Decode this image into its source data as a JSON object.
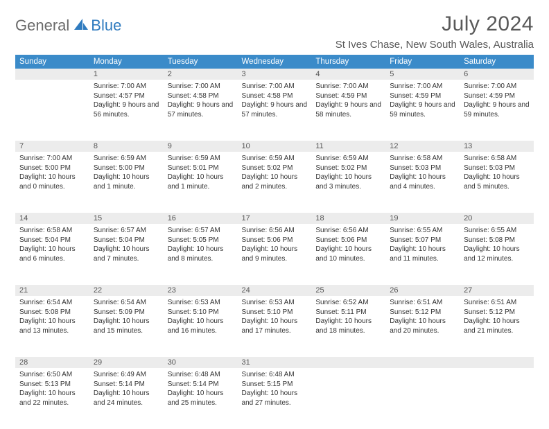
{
  "brand": {
    "part1": "General",
    "part2": "Blue"
  },
  "title": "July 2024",
  "location": "St Ives Chase, New South Wales, Australia",
  "colors": {
    "header_bg": "#3b8bc9",
    "header_text": "#ffffff",
    "daynum_bg": "#ececec",
    "row_border": "#2f6fa8",
    "title_color": "#595959",
    "body_text": "#333333",
    "logo_gray": "#6a6a6a",
    "logo_blue": "#2f7bbf"
  },
  "typography": {
    "title_fontsize": 30,
    "location_fontsize": 15,
    "header_fontsize": 11.5,
    "daynum_fontsize": 11,
    "body_fontsize": 10
  },
  "weekdays": [
    "Sunday",
    "Monday",
    "Tuesday",
    "Wednesday",
    "Thursday",
    "Friday",
    "Saturday"
  ],
  "weeks": [
    [
      {
        "n": "",
        "sr": "",
        "ss": "",
        "dl": ""
      },
      {
        "n": "1",
        "sr": "7:00 AM",
        "ss": "4:57 PM",
        "dl": "9 hours and 56 minutes."
      },
      {
        "n": "2",
        "sr": "7:00 AM",
        "ss": "4:58 PM",
        "dl": "9 hours and 57 minutes."
      },
      {
        "n": "3",
        "sr": "7:00 AM",
        "ss": "4:58 PM",
        "dl": "9 hours and 57 minutes."
      },
      {
        "n": "4",
        "sr": "7:00 AM",
        "ss": "4:59 PM",
        "dl": "9 hours and 58 minutes."
      },
      {
        "n": "5",
        "sr": "7:00 AM",
        "ss": "4:59 PM",
        "dl": "9 hours and 59 minutes."
      },
      {
        "n": "6",
        "sr": "7:00 AM",
        "ss": "4:59 PM",
        "dl": "9 hours and 59 minutes."
      }
    ],
    [
      {
        "n": "7",
        "sr": "7:00 AM",
        "ss": "5:00 PM",
        "dl": "10 hours and 0 minutes."
      },
      {
        "n": "8",
        "sr": "6:59 AM",
        "ss": "5:00 PM",
        "dl": "10 hours and 1 minute."
      },
      {
        "n": "9",
        "sr": "6:59 AM",
        "ss": "5:01 PM",
        "dl": "10 hours and 1 minute."
      },
      {
        "n": "10",
        "sr": "6:59 AM",
        "ss": "5:02 PM",
        "dl": "10 hours and 2 minutes."
      },
      {
        "n": "11",
        "sr": "6:59 AM",
        "ss": "5:02 PM",
        "dl": "10 hours and 3 minutes."
      },
      {
        "n": "12",
        "sr": "6:58 AM",
        "ss": "5:03 PM",
        "dl": "10 hours and 4 minutes."
      },
      {
        "n": "13",
        "sr": "6:58 AM",
        "ss": "5:03 PM",
        "dl": "10 hours and 5 minutes."
      }
    ],
    [
      {
        "n": "14",
        "sr": "6:58 AM",
        "ss": "5:04 PM",
        "dl": "10 hours and 6 minutes."
      },
      {
        "n": "15",
        "sr": "6:57 AM",
        "ss": "5:04 PM",
        "dl": "10 hours and 7 minutes."
      },
      {
        "n": "16",
        "sr": "6:57 AM",
        "ss": "5:05 PM",
        "dl": "10 hours and 8 minutes."
      },
      {
        "n": "17",
        "sr": "6:56 AM",
        "ss": "5:06 PM",
        "dl": "10 hours and 9 minutes."
      },
      {
        "n": "18",
        "sr": "6:56 AM",
        "ss": "5:06 PM",
        "dl": "10 hours and 10 minutes."
      },
      {
        "n": "19",
        "sr": "6:55 AM",
        "ss": "5:07 PM",
        "dl": "10 hours and 11 minutes."
      },
      {
        "n": "20",
        "sr": "6:55 AM",
        "ss": "5:08 PM",
        "dl": "10 hours and 12 minutes."
      }
    ],
    [
      {
        "n": "21",
        "sr": "6:54 AM",
        "ss": "5:08 PM",
        "dl": "10 hours and 13 minutes."
      },
      {
        "n": "22",
        "sr": "6:54 AM",
        "ss": "5:09 PM",
        "dl": "10 hours and 15 minutes."
      },
      {
        "n": "23",
        "sr": "6:53 AM",
        "ss": "5:10 PM",
        "dl": "10 hours and 16 minutes."
      },
      {
        "n": "24",
        "sr": "6:53 AM",
        "ss": "5:10 PM",
        "dl": "10 hours and 17 minutes."
      },
      {
        "n": "25",
        "sr": "6:52 AM",
        "ss": "5:11 PM",
        "dl": "10 hours and 18 minutes."
      },
      {
        "n": "26",
        "sr": "6:51 AM",
        "ss": "5:12 PM",
        "dl": "10 hours and 20 minutes."
      },
      {
        "n": "27",
        "sr": "6:51 AM",
        "ss": "5:12 PM",
        "dl": "10 hours and 21 minutes."
      }
    ],
    [
      {
        "n": "28",
        "sr": "6:50 AM",
        "ss": "5:13 PM",
        "dl": "10 hours and 22 minutes."
      },
      {
        "n": "29",
        "sr": "6:49 AM",
        "ss": "5:14 PM",
        "dl": "10 hours and 24 minutes."
      },
      {
        "n": "30",
        "sr": "6:48 AM",
        "ss": "5:14 PM",
        "dl": "10 hours and 25 minutes."
      },
      {
        "n": "31",
        "sr": "6:48 AM",
        "ss": "5:15 PM",
        "dl": "10 hours and 27 minutes."
      },
      {
        "n": "",
        "sr": "",
        "ss": "",
        "dl": ""
      },
      {
        "n": "",
        "sr": "",
        "ss": "",
        "dl": ""
      },
      {
        "n": "",
        "sr": "",
        "ss": "",
        "dl": ""
      }
    ]
  ],
  "labels": {
    "sunrise": "Sunrise:",
    "sunset": "Sunset:",
    "daylight": "Daylight:"
  }
}
